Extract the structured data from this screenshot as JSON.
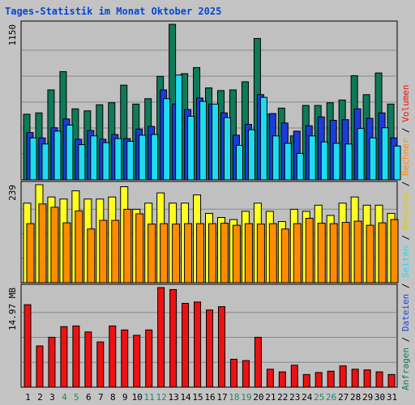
{
  "title": "Tages-Statistik im Monat Oktober 2025",
  "colors": {
    "background": "#c4c4c4",
    "panel": "#c0c0c0",
    "grid": "#888888",
    "title": "#0047d6",
    "anfragen": "#0e7a5a",
    "dateien": "#1a3cdc",
    "seiten": "#1edcf0",
    "besuche": "#ffff22",
    "rechner": "#ff8c00",
    "volumen": "#ee1111",
    "weekday_label": "#000000",
    "weekend_label": "#1a8a6a"
  },
  "right_label_top": [
    {
      "text": "Anfragen",
      "color": "#0e7a5a"
    },
    {
      "text": " / ",
      "color": "#000000"
    },
    {
      "text": "Dateien",
      "color": "#1a3cdc"
    },
    {
      "text": " / ",
      "color": "#000000"
    },
    {
      "text": "Seiten",
      "color": "#1edcf0"
    },
    {
      "text": " / ",
      "color": "#000000"
    },
    {
      "text": "Besuche",
      "color": "#e6c800"
    },
    {
      "text": " / ",
      "color": "#000000"
    },
    {
      "text": "Rechner",
      "color": "#ff8c00"
    },
    {
      "text": " / ",
      "color": "#000000"
    },
    {
      "text": "Volumen",
      "color": "#ee1111"
    }
  ],
  "chart_data": [
    {
      "type": "bar",
      "panel": "hits",
      "ylabel": "1150",
      "ylim": [
        0,
        1150
      ],
      "categories": [
        "1",
        "2",
        "3",
        "4",
        "5",
        "6",
        "7",
        "8",
        "9",
        "10",
        "11",
        "12",
        "13",
        "14",
        "15",
        "16",
        "17",
        "18",
        "19",
        "20",
        "21",
        "22",
        "23",
        "24",
        "25",
        "26",
        "27",
        "28",
        "29",
        "30",
        "31"
      ],
      "weekend": [
        4,
        5,
        11,
        12,
        18,
        19,
        25,
        26
      ],
      "series": [
        {
          "name": "Anfragen",
          "values": [
            485,
            495,
            665,
            800,
            525,
            510,
            555,
            570,
            700,
            560,
            600,
            765,
            1150,
            785,
            830,
            680,
            660,
            665,
            725,
            1045,
            485,
            530,
            325,
            550,
            550,
            570,
            590,
            770,
            630,
            790,
            560
          ]
        },
        {
          "name": "Dateien",
          "values": [
            350,
            310,
            385,
            450,
            300,
            365,
            300,
            335,
            305,
            375,
            395,
            665,
            560,
            520,
            605,
            560,
            495,
            330,
            410,
            630,
            490,
            420,
            360,
            400,
            465,
            440,
            445,
            525,
            455,
            495,
            310
          ]
        },
        {
          "name": "Seiten",
          "values": [
            310,
            265,
            360,
            405,
            260,
            325,
            275,
            305,
            285,
            330,
            335,
            600,
            775,
            470,
            580,
            560,
            460,
            255,
            370,
            610,
            325,
            270,
            195,
            325,
            280,
            270,
            265,
            380,
            310,
            385,
            250
          ]
        }
      ]
    },
    {
      "type": "bar",
      "panel": "visits",
      "ylabel": "239",
      "ylim": [
        0,
        239
      ],
      "series": [
        {
          "name": "Besuche",
          "values": [
            194,
            239,
            209,
            204,
            224,
            204,
            204,
            209,
            234,
            179,
            194,
            219,
            194,
            194,
            214,
            169,
            159,
            154,
            174,
            194,
            174,
            149,
            179,
            174,
            189,
            164,
            194,
            209,
            189,
            189,
            169
          ]
        },
        {
          "name": "Rechner",
          "values": [
            144,
            192,
            184,
            146,
            175,
            131,
            152,
            152,
            179,
            168,
            143,
            144,
            143,
            144,
            144,
            144,
            145,
            140,
            144,
            143,
            144,
            131,
            144,
            157,
            145,
            144,
            147,
            150,
            140,
            146,
            154
          ]
        }
      ]
    },
    {
      "type": "bar",
      "panel": "volume",
      "ylabel": "14.97 MB",
      "ylim": [
        0,
        14.97
      ],
      "series": [
        {
          "name": "Volumen",
          "values": [
            12.4,
            6.2,
            7.5,
            9.1,
            9.2,
            8.3,
            6.8,
            9.2,
            8.6,
            7.8,
            8.6,
            14.97,
            14.67,
            12.6,
            12.8,
            11.6,
            12.1,
            4.2,
            4.0,
            7.5,
            2.7,
            2.3,
            3.3,
            1.9,
            2.2,
            2.4,
            3.2,
            2.7,
            2.6,
            2.3,
            1.9
          ]
        }
      ]
    }
  ]
}
